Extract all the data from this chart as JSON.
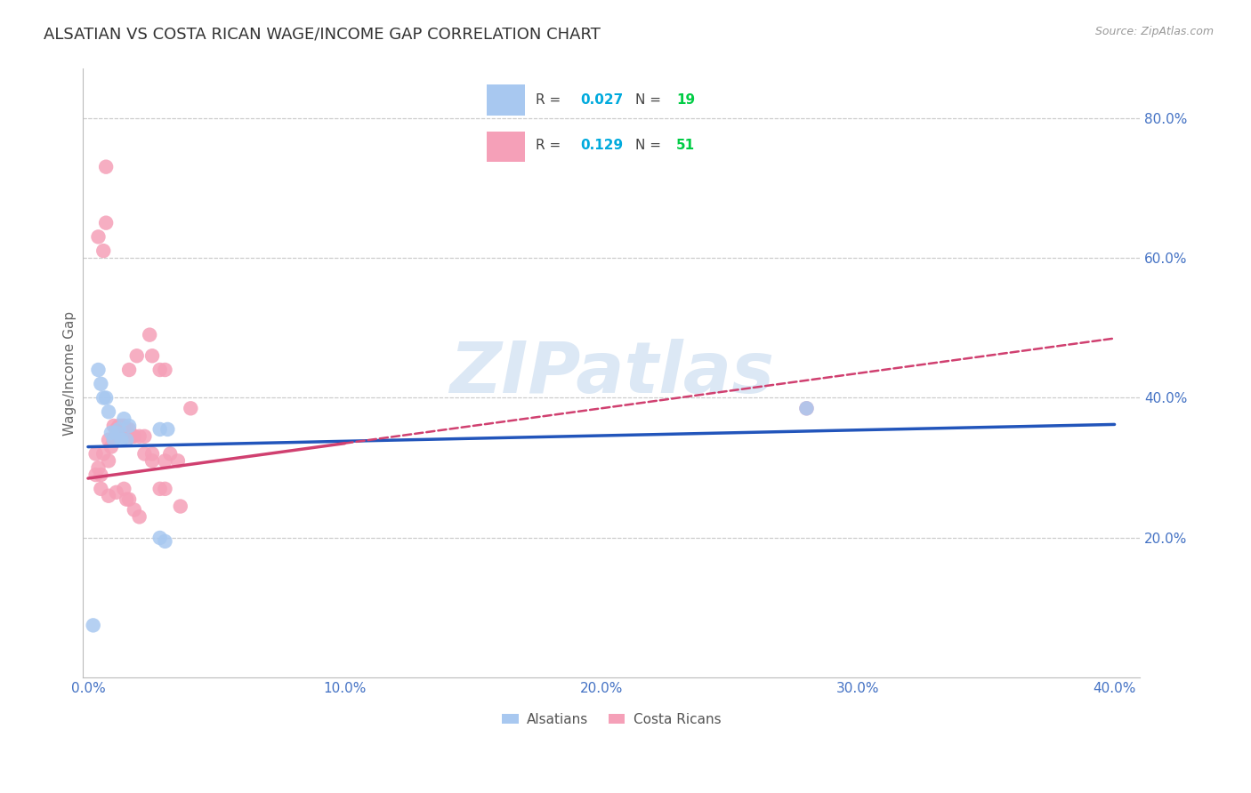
{
  "title": "ALSATIAN VS COSTA RICAN WAGE/INCOME GAP CORRELATION CHART",
  "source": "Source: ZipAtlas.com",
  "ylabel": "Wage/Income Gap",
  "xlim": [
    -0.002,
    0.41
  ],
  "ylim": [
    0.0,
    0.87
  ],
  "R_alsatian": 0.027,
  "N_alsatian": 19,
  "R_costarican": 0.129,
  "N_costarican": 51,
  "alsatian_color": "#a8c8f0",
  "costarican_color": "#f5a0b8",
  "alsatian_line_color": "#2255bb",
  "costarican_line_color": "#d04070",
  "watermark_text": "ZIPatlas",
  "watermark_color": "#dce8f5",
  "background_color": "#ffffff",
  "grid_color": "#cccccc",
  "tick_color": "#4472c4",
  "alsatian_x": [
    0.002,
    0.004,
    0.005,
    0.006,
    0.007,
    0.008,
    0.009,
    0.01,
    0.011,
    0.012,
    0.013,
    0.014,
    0.015,
    0.016,
    0.028,
    0.03,
    0.028,
    0.031,
    0.28
  ],
  "alsatian_y": [
    0.075,
    0.44,
    0.42,
    0.4,
    0.4,
    0.38,
    0.35,
    0.34,
    0.35,
    0.355,
    0.34,
    0.37,
    0.34,
    0.36,
    0.2,
    0.195,
    0.355,
    0.355,
    0.385
  ],
  "costarican_x": [
    0.003,
    0.004,
    0.005,
    0.006,
    0.007,
    0.007,
    0.008,
    0.009,
    0.01,
    0.011,
    0.012,
    0.013,
    0.014,
    0.015,
    0.015,
    0.016,
    0.017,
    0.018,
    0.02,
    0.022,
    0.024,
    0.025,
    0.028,
    0.03,
    0.032,
    0.035,
    0.004,
    0.006,
    0.008,
    0.01,
    0.013,
    0.016,
    0.019,
    0.025,
    0.03,
    0.003,
    0.005,
    0.008,
    0.011,
    0.014,
    0.015,
    0.016,
    0.018,
    0.02,
    0.022,
    0.025,
    0.028,
    0.03,
    0.036,
    0.04,
    0.28
  ],
  "costarican_y": [
    0.32,
    0.3,
    0.29,
    0.32,
    0.73,
    0.65,
    0.34,
    0.33,
    0.36,
    0.355,
    0.36,
    0.36,
    0.36,
    0.355,
    0.345,
    0.355,
    0.345,
    0.345,
    0.345,
    0.345,
    0.49,
    0.46,
    0.44,
    0.44,
    0.32,
    0.31,
    0.63,
    0.61,
    0.31,
    0.34,
    0.355,
    0.44,
    0.46,
    0.32,
    0.31,
    0.29,
    0.27,
    0.26,
    0.265,
    0.27,
    0.255,
    0.255,
    0.24,
    0.23,
    0.32,
    0.31,
    0.27,
    0.27,
    0.245,
    0.385,
    0.385
  ],
  "title_fontsize": 13,
  "axis_label_fontsize": 11,
  "tick_fontsize": 11,
  "source_fontsize": 9
}
